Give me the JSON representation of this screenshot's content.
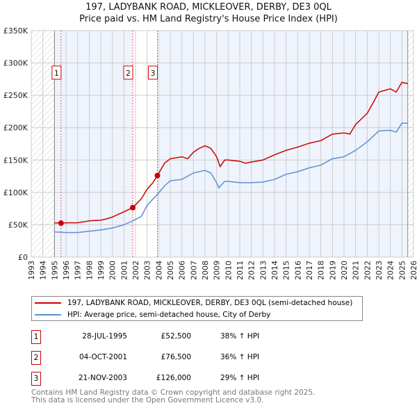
{
  "title_line1": "197, LADYBANK ROAD, MICKLEOVER, DERBY, DE3 0QL",
  "title_line2": "Price paid vs. HM Land Registry's House Price Index (HPI)",
  "colors": {
    "property": "#cc0000",
    "hpi": "#5b8fd4",
    "shade": "#eef3fc"
  },
  "chart_data": {
    "type": "line",
    "title": "197, LADYBANK ROAD, MICKLEOVER, DERBY, DE3 0QL - Price paid vs. HM Land Registry's House Price Index (HPI)",
    "xlim": [
      1993,
      2026
    ],
    "ylim": [
      0,
      350000
    ],
    "x_ticks": [
      "1993",
      "1994",
      "1995",
      "1996",
      "1997",
      "1998",
      "1999",
      "2000",
      "2001",
      "2002",
      "2003",
      "2004",
      "2005",
      "2006",
      "2007",
      "2008",
      "2009",
      "2010",
      "2011",
      "2012",
      "2013",
      "2014",
      "2015",
      "2016",
      "2017",
      "2018",
      "2019",
      "2020",
      "2021",
      "2022",
      "2023",
      "2024",
      "2025",
      "2026"
    ],
    "y_ticks": [
      {
        "v": 0,
        "label": "£0"
      },
      {
        "v": 50000,
        "label": "£50K"
      },
      {
        "v": 100000,
        "label": "£100K"
      },
      {
        "v": 150000,
        "label": "£150K"
      },
      {
        "v": 200000,
        "label": "£200K"
      },
      {
        "v": 250000,
        "label": "£250K"
      },
      {
        "v": 300000,
        "label": "£300K"
      },
      {
        "v": 350000,
        "label": "£350K"
      }
    ],
    "grid": true,
    "hatched_before": 1995.0,
    "hatched_after": 2025.5,
    "series": [
      {
        "name": "197, LADYBANK ROAD, MICKLEOVER, DERBY, DE3 0QL (semi-detached house)",
        "color": "#cc0000",
        "x": [
          1995.0,
          1995.57,
          1996,
          1997,
          1998,
          1999,
          1999.5,
          2000,
          2001,
          2001.76,
          2002.5,
          2003,
          2003.5,
          2003.89,
          2004.5,
          2005,
          2006,
          2006.5,
          2007,
          2007.5,
          2008,
          2008.5,
          2009,
          2009.3,
          2009.7,
          2010,
          2011,
          2011.5,
          2012,
          2013,
          2014,
          2015,
          2016,
          2017,
          2018,
          2019,
          2020,
          2020.5,
          2021,
          2022,
          2022.5,
          2023,
          2024,
          2024.5,
          2025,
          2025.5
        ],
        "y": [
          53000,
          52500,
          53000,
          53000,
          56000,
          57000,
          59000,
          62000,
          70000,
          76500,
          90000,
          105000,
          115000,
          126000,
          145000,
          152000,
          155000,
          152000,
          162000,
          168000,
          172000,
          168000,
          155000,
          140000,
          150000,
          150000,
          148000,
          145000,
          147000,
          150000,
          158000,
          165000,
          170000,
          176000,
          180000,
          190000,
          192000,
          190000,
          205000,
          222000,
          238000,
          255000,
          260000,
          255000,
          270000,
          268000
        ]
      },
      {
        "name": "HPI: Average price, semi-detached house, City of Derby",
        "color": "#5b8fd4",
        "x": [
          1995.0,
          1996,
          1997,
          1998,
          1999,
          2000,
          2001,
          2001.76,
          2002.5,
          2003,
          2003.89,
          2004.5,
          2005,
          2006,
          2007,
          2008,
          2008.5,
          2009,
          2009.2,
          2009.7,
          2010,
          2011,
          2012,
          2013,
          2014,
          2015,
          2016,
          2017,
          2018,
          2019,
          2020,
          2021,
          2022,
          2023,
          2024,
          2024.5,
          2025,
          2025.5
        ],
        "y": [
          39000,
          38000,
          38000,
          40000,
          42000,
          45000,
          50000,
          56000,
          63000,
          80000,
          97000,
          110000,
          118000,
          120000,
          130000,
          134000,
          130000,
          115000,
          107000,
          117000,
          117000,
          115000,
          115000,
          116000,
          120000,
          128000,
          132000,
          138000,
          142000,
          152000,
          155000,
          165000,
          178000,
          195000,
          196000,
          193000,
          207000,
          207000
        ]
      }
    ],
    "sales": [
      {
        "n": "1",
        "x": 1995.57,
        "price": 52500,
        "date": "28-JUL-1995",
        "price_label": "£52,500",
        "hpi": "38% ↑ HPI"
      },
      {
        "n": "2",
        "x": 2001.76,
        "price": 76500,
        "date": "04-OCT-2001",
        "price_label": "£76,500",
        "hpi": "36% ↑ HPI"
      },
      {
        "n": "3",
        "x": 2003.89,
        "price": 126000,
        "date": "21-NOV-2003",
        "price_label": "£126,000",
        "hpi": "29% ↑ HPI"
      }
    ]
  },
  "legend": {
    "property": "197, LADYBANK ROAD, MICKLEOVER, DERBY, DE3 0QL (semi-detached house)",
    "hpi": "HPI: Average price, semi-detached house, City of Derby"
  },
  "footer": {
    "line1": "Contains HM Land Registry data © Crown copyright and database right 2025.",
    "line2": "This data is licensed under the Open Government Licence v3.0."
  }
}
